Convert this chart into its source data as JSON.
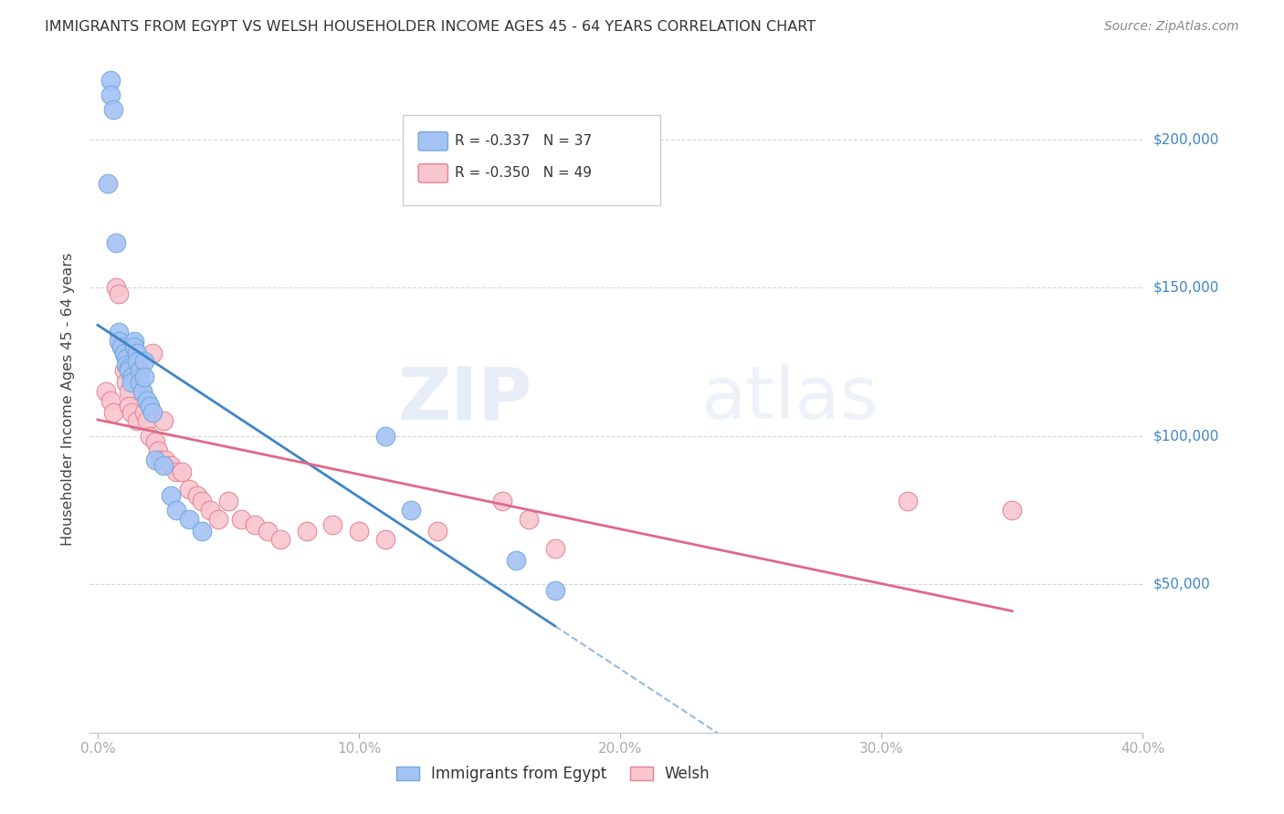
{
  "title": "IMMIGRANTS FROM EGYPT VS WELSH HOUSEHOLDER INCOME AGES 45 - 64 YEARS CORRELATION CHART",
  "source": "Source: ZipAtlas.com",
  "ylabel": "Householder Income Ages 45 - 64 years",
  "ytick_labels": [
    "$50,000",
    "$100,000",
    "$150,000",
    "$200,000"
  ],
  "ytick_values": [
    50000,
    100000,
    150000,
    200000
  ],
  "ylim": [
    0,
    225000
  ],
  "xlim": [
    -0.003,
    0.4
  ],
  "watermark_zip": "ZIP",
  "watermark_atlas": "atlas",
  "legend_egypt_R": "-0.337",
  "legend_egypt_N": "37",
  "legend_welsh_R": "-0.350",
  "legend_welsh_N": "49",
  "blue_dot_color": "#a4c2f4",
  "blue_edge_color": "#6fa8dc",
  "blue_line_color": "#3d85c8",
  "pink_dot_color": "#f9c6cf",
  "pink_edge_color": "#e48090",
  "pink_line_color": "#e06888",
  "egypt_x": [
    0.004,
    0.005,
    0.005,
    0.006,
    0.007,
    0.008,
    0.008,
    0.009,
    0.01,
    0.011,
    0.011,
    0.012,
    0.012,
    0.013,
    0.013,
    0.014,
    0.014,
    0.015,
    0.015,
    0.016,
    0.016,
    0.017,
    0.018,
    0.018,
    0.019,
    0.02,
    0.021,
    0.022,
    0.025,
    0.028,
    0.03,
    0.035,
    0.04,
    0.11,
    0.12,
    0.16,
    0.175
  ],
  "egypt_y": [
    185000,
    220000,
    215000,
    210000,
    165000,
    135000,
    132000,
    130000,
    128000,
    126000,
    124000,
    123000,
    122000,
    120000,
    118000,
    132000,
    130000,
    128000,
    125000,
    122000,
    118000,
    115000,
    125000,
    120000,
    112000,
    110000,
    108000,
    92000,
    90000,
    80000,
    75000,
    72000,
    68000,
    100000,
    75000,
    58000,
    48000
  ],
  "welsh_x": [
    0.003,
    0.005,
    0.006,
    0.007,
    0.008,
    0.009,
    0.01,
    0.01,
    0.011,
    0.012,
    0.012,
    0.013,
    0.014,
    0.015,
    0.015,
    0.016,
    0.017,
    0.018,
    0.019,
    0.02,
    0.021,
    0.022,
    0.023,
    0.024,
    0.025,
    0.026,
    0.028,
    0.03,
    0.032,
    0.035,
    0.038,
    0.04,
    0.043,
    0.046,
    0.05,
    0.055,
    0.06,
    0.065,
    0.07,
    0.08,
    0.09,
    0.1,
    0.11,
    0.13,
    0.155,
    0.165,
    0.175,
    0.31,
    0.35
  ],
  "welsh_y": [
    115000,
    112000,
    108000,
    150000,
    148000,
    130000,
    128000,
    122000,
    118000,
    115000,
    110000,
    108000,
    125000,
    120000,
    105000,
    120000,
    115000,
    108000,
    105000,
    100000,
    128000,
    98000,
    95000,
    92000,
    105000,
    92000,
    90000,
    88000,
    88000,
    82000,
    80000,
    78000,
    75000,
    72000,
    78000,
    72000,
    70000,
    68000,
    65000,
    68000,
    70000,
    68000,
    65000,
    68000,
    78000,
    72000,
    62000,
    78000,
    75000
  ]
}
